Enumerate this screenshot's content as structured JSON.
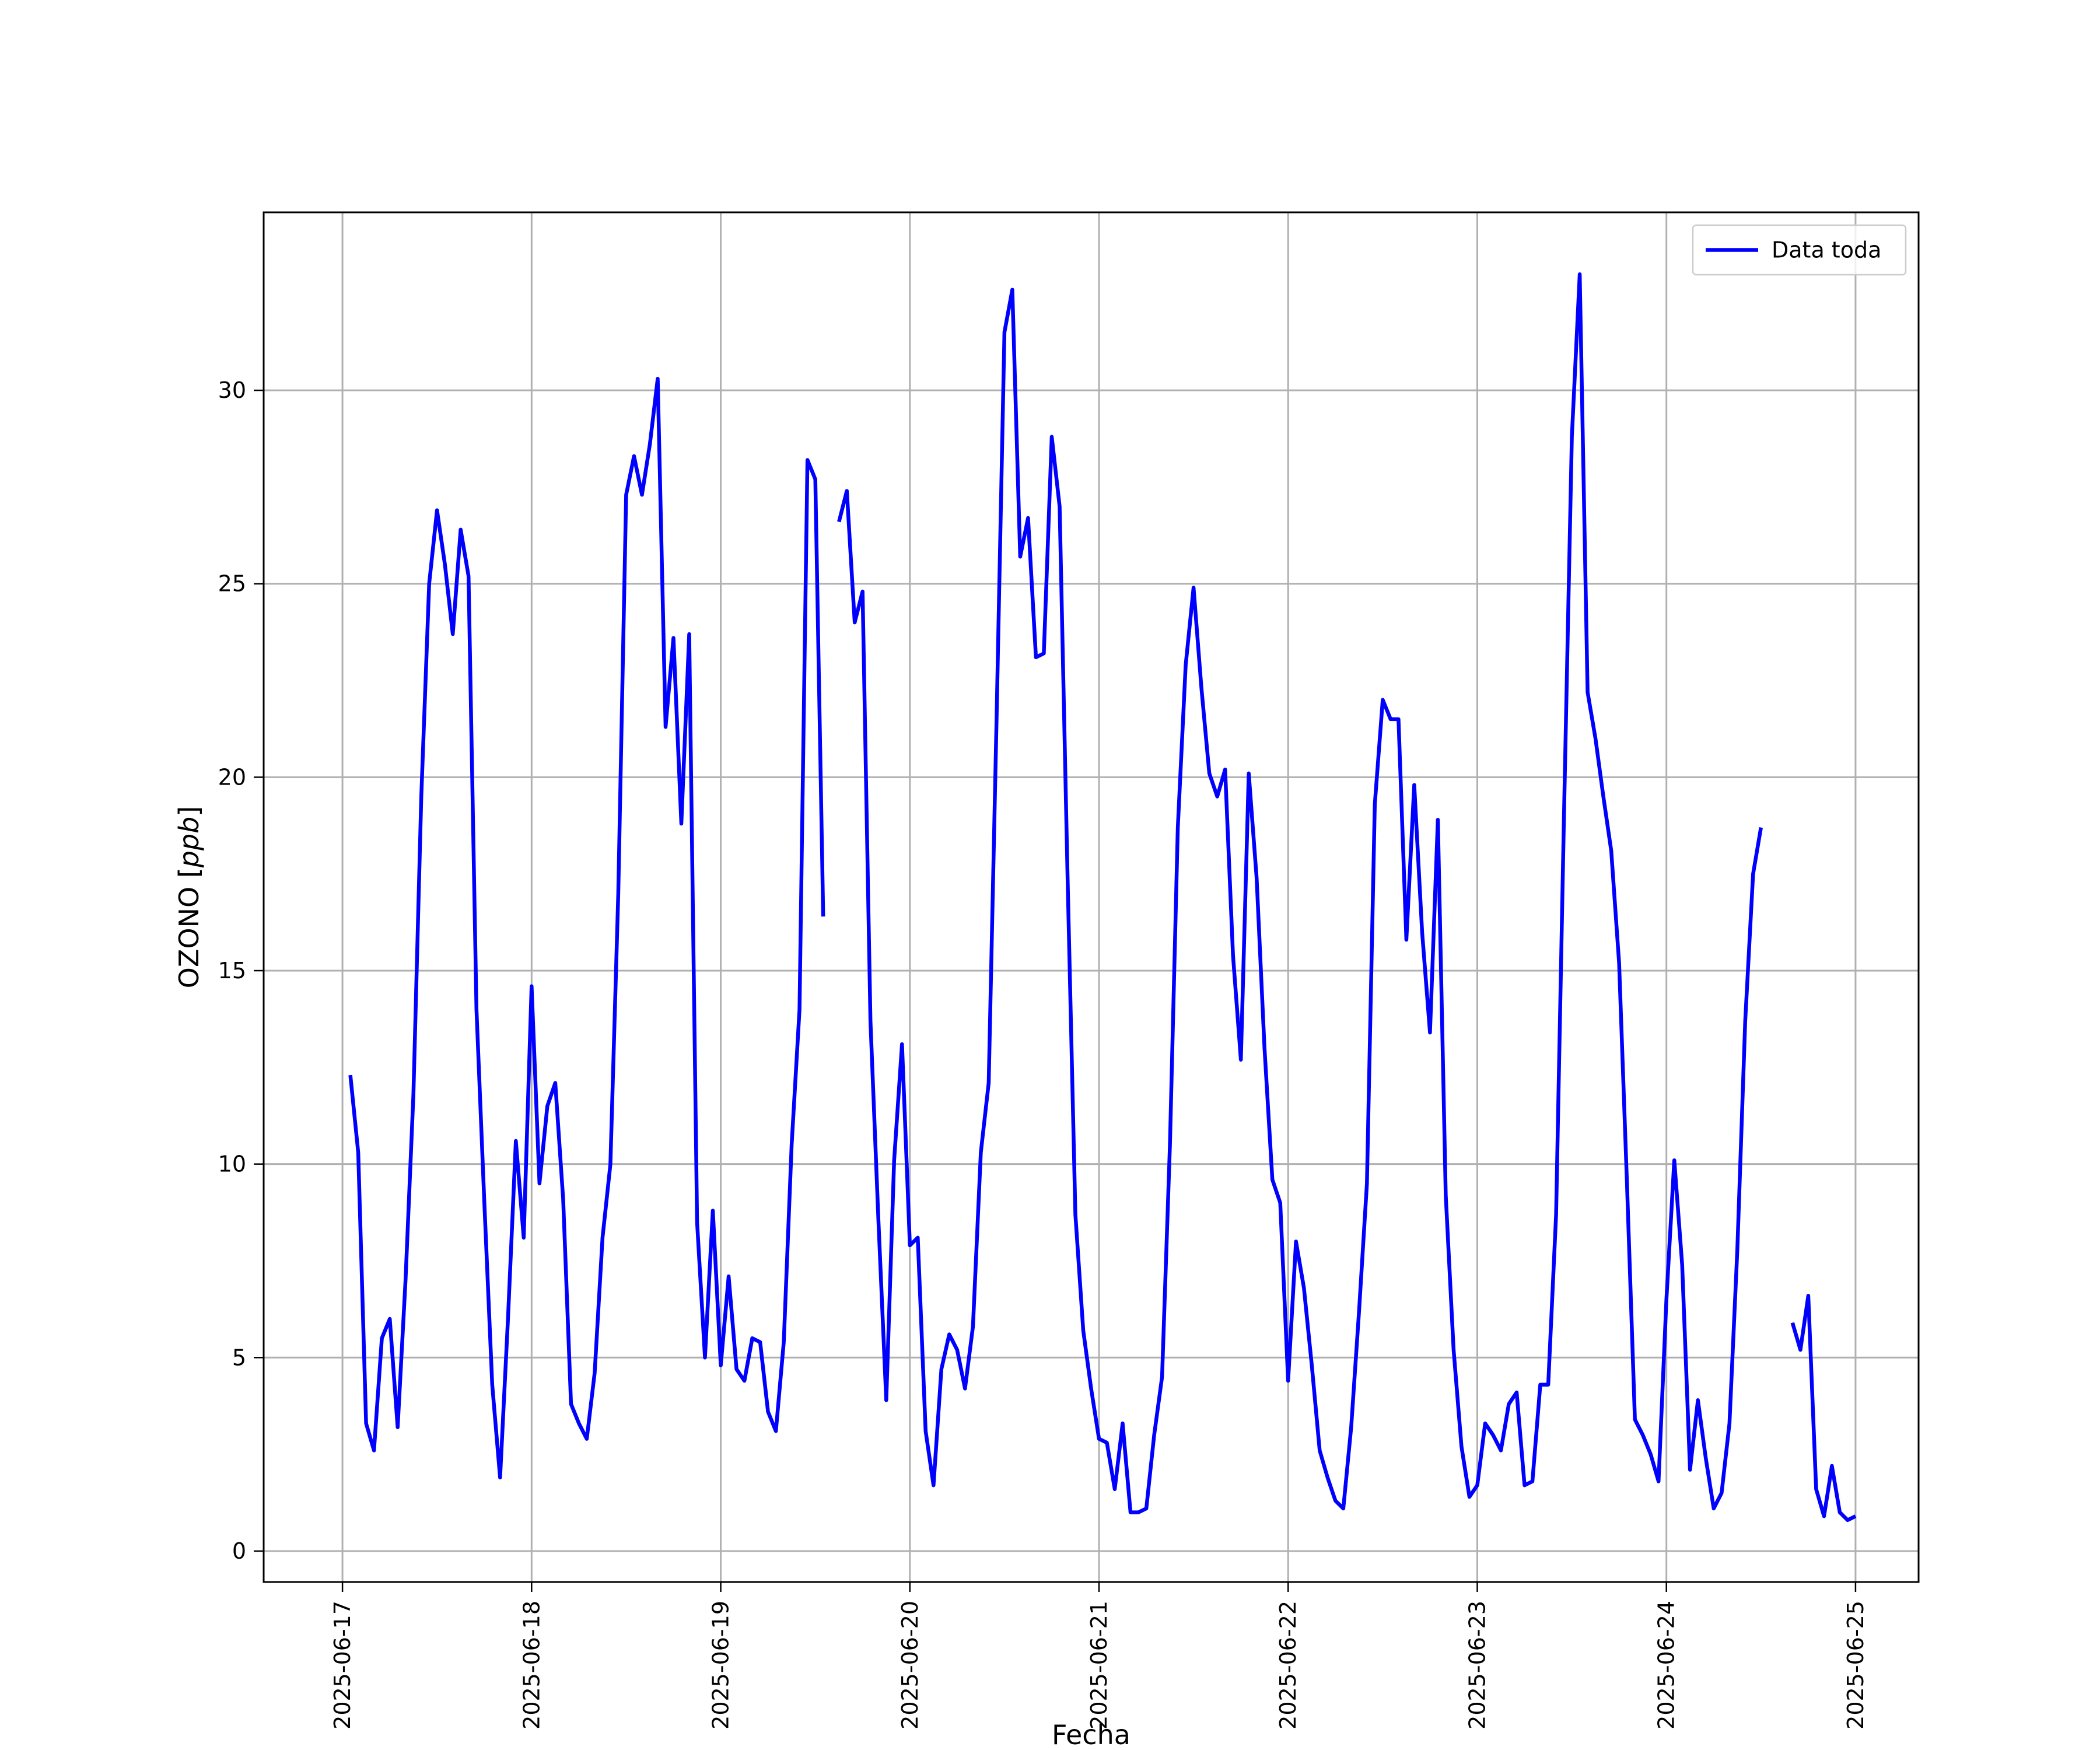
{
  "chart_data": {
    "type": "line",
    "xlabel": "Fecha",
    "ylabel_main": "OZONO [",
    "ylabel_unit": "ppb",
    "ylabel_close": "]",
    "xlim": [
      "2025-06-16 14:00",
      "2025-06-25 08:00"
    ],
    "ylim": [
      -0.8,
      34.6
    ],
    "grid": true,
    "legend_position": "top-right",
    "x_ticks": [
      "2025-06-17",
      "2025-06-18",
      "2025-06-19",
      "2025-06-20",
      "2025-06-21",
      "2025-06-22",
      "2025-06-23",
      "2025-06-24",
      "2025-06-25"
    ],
    "y_ticks": [
      0,
      5,
      10,
      15,
      20,
      25,
      30
    ],
    "series": [
      {
        "name": "Data toda",
        "color": "#0000ff",
        "points": [
          [
            "2025-06-17 01:00",
            12.3
          ],
          [
            "2025-06-17 02:00",
            10.3
          ],
          [
            "2025-06-17 03:00",
            3.3
          ],
          [
            "2025-06-17 04:00",
            2.6
          ],
          [
            "2025-06-17 05:00",
            5.5
          ],
          [
            "2025-06-17 06:00",
            6.0
          ],
          [
            "2025-06-17 07:00",
            3.2
          ],
          [
            "2025-06-17 08:00",
            7.0
          ],
          [
            "2025-06-17 09:00",
            11.8
          ],
          [
            "2025-06-17 10:00",
            19.5
          ],
          [
            "2025-06-17 11:00",
            25.0
          ],
          [
            "2025-06-17 12:00",
            26.9
          ],
          [
            "2025-06-17 13:00",
            25.5
          ],
          [
            "2025-06-17 14:00",
            23.7
          ],
          [
            "2025-06-17 15:00",
            26.4
          ],
          [
            "2025-06-17 16:00",
            25.2
          ],
          [
            "2025-06-17 17:00",
            14.0
          ],
          [
            "2025-06-17 18:00",
            9.0
          ],
          [
            "2025-06-17 19:00",
            4.3
          ],
          [
            "2025-06-17 20:00",
            1.9
          ],
          [
            "2025-06-17 21:00",
            6.0
          ],
          [
            "2025-06-17 22:00",
            10.6
          ],
          [
            "2025-06-17 23:00",
            8.1
          ],
          [
            "2025-06-18 00:00",
            14.6
          ],
          [
            "2025-06-18 01:00",
            9.5
          ],
          [
            "2025-06-18 02:00",
            11.5
          ],
          [
            "2025-06-18 03:00",
            12.1
          ],
          [
            "2025-06-18 04:00",
            9.1
          ],
          [
            "2025-06-18 05:00",
            3.8
          ],
          [
            "2025-06-18 06:00",
            3.3
          ],
          [
            "2025-06-18 07:00",
            2.9
          ],
          [
            "2025-06-18 08:00",
            4.6
          ],
          [
            "2025-06-18 09:00",
            8.1
          ],
          [
            "2025-06-18 10:00",
            10.0
          ],
          [
            "2025-06-18 11:00",
            17.0
          ],
          [
            "2025-06-18 12:00",
            27.3
          ],
          [
            "2025-06-18 13:00",
            28.3
          ],
          [
            "2025-06-18 14:00",
            27.3
          ],
          [
            "2025-06-18 15:00",
            28.6
          ],
          [
            "2025-06-18 16:00",
            30.3
          ],
          [
            "2025-06-18 17:00",
            21.3
          ],
          [
            "2025-06-18 18:00",
            23.6
          ],
          [
            "2025-06-18 19:00",
            18.8
          ],
          [
            "2025-06-18 20:00",
            23.7
          ],
          [
            "2025-06-18 21:00",
            8.5
          ],
          [
            "2025-06-18 22:00",
            5.0
          ],
          [
            "2025-06-18 23:00",
            8.8
          ],
          [
            "2025-06-19 00:00",
            4.8
          ],
          [
            "2025-06-19 01:00",
            7.1
          ],
          [
            "2025-06-19 02:00",
            4.7
          ],
          [
            "2025-06-19 03:00",
            4.4
          ],
          [
            "2025-06-19 04:00",
            5.5
          ],
          [
            "2025-06-19 05:00",
            5.4
          ],
          [
            "2025-06-19 06:00",
            3.6
          ],
          [
            "2025-06-19 07:00",
            3.1
          ],
          [
            "2025-06-19 08:00",
            5.4
          ],
          [
            "2025-06-19 09:00",
            10.5
          ],
          [
            "2025-06-19 10:00",
            14.0
          ],
          [
            "2025-06-19 11:00",
            28.2
          ],
          [
            "2025-06-19 12:00",
            27.7
          ],
          [
            "2025-06-19 13:00",
            16.4
          ],
          null,
          [
            "2025-06-19 15:00",
            26.6
          ],
          [
            "2025-06-19 16:00",
            27.4
          ],
          [
            "2025-06-19 17:00",
            24.0
          ],
          [
            "2025-06-19 18:00",
            24.8
          ],
          [
            "2025-06-19 19:00",
            13.7
          ],
          [
            "2025-06-19 20:00",
            8.6
          ],
          [
            "2025-06-19 21:00",
            3.9
          ],
          [
            "2025-06-19 22:00",
            10.1
          ],
          [
            "2025-06-19 23:00",
            13.1
          ],
          [
            "2025-06-20 00:00",
            7.9
          ],
          [
            "2025-06-20 01:00",
            8.1
          ],
          [
            "2025-06-20 02:00",
            3.1
          ],
          [
            "2025-06-20 03:00",
            1.7
          ],
          [
            "2025-06-20 04:00",
            4.7
          ],
          [
            "2025-06-20 05:00",
            5.6
          ],
          [
            "2025-06-20 06:00",
            5.2
          ],
          [
            "2025-06-20 07:00",
            4.2
          ],
          [
            "2025-06-20 08:00",
            5.8
          ],
          [
            "2025-06-20 09:00",
            10.3
          ],
          [
            "2025-06-20 10:00",
            12.1
          ],
          [
            "2025-06-20 11:00",
            21.5
          ],
          [
            "2025-06-20 12:00",
            31.5
          ],
          [
            "2025-06-20 13:00",
            32.6
          ],
          [
            "2025-06-20 14:00",
            25.7
          ],
          [
            "2025-06-20 15:00",
            26.7
          ],
          [
            "2025-06-20 16:00",
            23.1
          ],
          [
            "2025-06-20 17:00",
            23.2
          ],
          [
            "2025-06-20 18:00",
            28.8
          ],
          [
            "2025-06-20 19:00",
            27.0
          ],
          [
            "2025-06-20 20:00",
            17.5
          ],
          [
            "2025-06-20 21:00",
            8.7
          ],
          [
            "2025-06-20 22:00",
            5.7
          ],
          [
            "2025-06-20 23:00",
            4.2
          ],
          [
            "2025-06-21 00:00",
            2.9
          ],
          [
            "2025-06-21 01:00",
            2.8
          ],
          [
            "2025-06-21 02:00",
            1.6
          ],
          [
            "2025-06-21 03:00",
            3.3
          ],
          [
            "2025-06-21 04:00",
            1.0
          ],
          [
            "2025-06-21 05:00",
            1.0
          ],
          [
            "2025-06-21 06:00",
            1.1
          ],
          [
            "2025-06-21 07:00",
            3.0
          ],
          [
            "2025-06-21 08:00",
            4.5
          ],
          [
            "2025-06-21 09:00",
            10.5
          ],
          [
            "2025-06-21 10:00",
            18.7
          ],
          [
            "2025-06-21 11:00",
            22.9
          ],
          [
            "2025-06-21 12:00",
            24.9
          ],
          [
            "2025-06-21 13:00",
            22.3
          ],
          [
            "2025-06-21 14:00",
            20.1
          ],
          [
            "2025-06-21 15:00",
            19.5
          ],
          [
            "2025-06-21 16:00",
            20.2
          ],
          [
            "2025-06-21 17:00",
            15.4
          ],
          [
            "2025-06-21 18:00",
            12.7
          ],
          [
            "2025-06-21 19:00",
            20.1
          ],
          [
            "2025-06-21 20:00",
            17.4
          ],
          [
            "2025-06-21 21:00",
            13.0
          ],
          [
            "2025-06-21 22:00",
            9.6
          ],
          [
            "2025-06-21 23:00",
            9.0
          ],
          [
            "2025-06-22 00:00",
            4.4
          ],
          [
            "2025-06-22 01:00",
            8.0
          ],
          [
            "2025-06-22 02:00",
            6.8
          ],
          [
            "2025-06-22 03:00",
            4.8
          ],
          [
            "2025-06-22 04:00",
            2.6
          ],
          [
            "2025-06-22 05:00",
            1.9
          ],
          [
            "2025-06-22 06:00",
            1.3
          ],
          [
            "2025-06-22 07:00",
            1.1
          ],
          [
            "2025-06-22 08:00",
            3.2
          ],
          [
            "2025-06-22 09:00",
            6.2
          ],
          [
            "2025-06-22 10:00",
            9.5
          ],
          [
            "2025-06-22 11:00",
            19.3
          ],
          [
            "2025-06-22 12:00",
            22.0
          ],
          [
            "2025-06-22 13:00",
            21.5
          ],
          [
            "2025-06-22 14:00",
            21.5
          ],
          [
            "2025-06-22 15:00",
            15.8
          ],
          [
            "2025-06-22 16:00",
            19.8
          ],
          [
            "2025-06-22 17:00",
            16.0
          ],
          [
            "2025-06-22 18:00",
            13.4
          ],
          [
            "2025-06-22 19:00",
            18.9
          ],
          [
            "2025-06-22 20:00",
            9.2
          ],
          [
            "2025-06-22 21:00",
            5.2
          ],
          [
            "2025-06-22 22:00",
            2.7
          ],
          [
            "2025-06-22 23:00",
            1.4
          ],
          [
            "2025-06-23 00:00",
            1.7
          ],
          [
            "2025-06-23 01:00",
            3.3
          ],
          [
            "2025-06-23 02:00",
            3.0
          ],
          [
            "2025-06-23 03:00",
            2.6
          ],
          [
            "2025-06-23 04:00",
            3.8
          ],
          [
            "2025-06-23 05:00",
            4.1
          ],
          [
            "2025-06-23 06:00",
            1.7
          ],
          [
            "2025-06-23 07:00",
            1.8
          ],
          [
            "2025-06-23 08:00",
            4.3
          ],
          [
            "2025-06-23 09:00",
            4.3
          ],
          [
            "2025-06-23 10:00",
            8.7
          ],
          [
            "2025-06-23 11:00",
            19.0
          ],
          [
            "2025-06-23 12:00",
            28.8
          ],
          [
            "2025-06-23 13:00",
            33.0
          ],
          [
            "2025-06-23 14:00",
            22.2
          ],
          [
            "2025-06-23 15:00",
            21.0
          ],
          [
            "2025-06-23 16:00",
            19.5
          ],
          [
            "2025-06-23 17:00",
            18.1
          ],
          [
            "2025-06-23 18:00",
            15.2
          ],
          [
            "2025-06-23 19:00",
            9.5
          ],
          [
            "2025-06-23 20:00",
            3.4
          ],
          [
            "2025-06-23 21:00",
            3.0
          ],
          [
            "2025-06-23 22:00",
            2.5
          ],
          [
            "2025-06-23 23:00",
            1.8
          ],
          [
            "2025-06-24 00:00",
            6.5
          ],
          [
            "2025-06-24 01:00",
            10.1
          ],
          [
            "2025-06-24 02:00",
            7.4
          ],
          [
            "2025-06-24 03:00",
            2.1
          ],
          [
            "2025-06-24 04:00",
            3.9
          ],
          [
            "2025-06-24 05:00",
            2.4
          ],
          [
            "2025-06-24 06:00",
            1.1
          ],
          [
            "2025-06-24 07:00",
            1.5
          ],
          [
            "2025-06-24 08:00",
            3.3
          ],
          [
            "2025-06-24 09:00",
            7.8
          ],
          [
            "2025-06-24 10:00",
            13.7
          ],
          [
            "2025-06-24 11:00",
            17.5
          ],
          [
            "2025-06-24 12:00",
            18.7
          ],
          null,
          [
            "2025-06-24 16:00",
            5.9
          ],
          [
            "2025-06-24 17:00",
            5.2
          ],
          [
            "2025-06-24 18:00",
            6.6
          ],
          [
            "2025-06-24 19:00",
            1.6
          ],
          [
            "2025-06-24 20:00",
            0.9
          ],
          [
            "2025-06-24 21:00",
            2.2
          ],
          [
            "2025-06-24 22:00",
            1.0
          ],
          [
            "2025-06-24 23:00",
            0.8
          ],
          [
            "2025-06-25 00:00",
            0.9
          ]
        ]
      }
    ]
  }
}
